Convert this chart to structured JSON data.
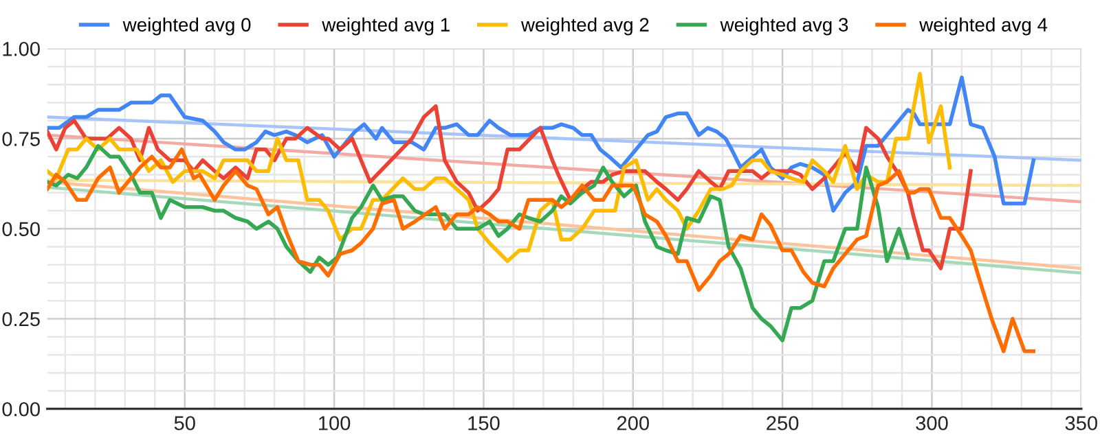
{
  "chart_data": {
    "type": "line",
    "legend": "top",
    "grid": true,
    "marker": "none",
    "line_style": "solid",
    "xlim": [
      4,
      350
    ],
    "xticks": [
      {
        "value": 10,
        "label": null
      },
      {
        "value": 20,
        "label": null
      },
      {
        "value": 30,
        "label": null
      },
      {
        "value": 40,
        "label": null
      },
      50,
      {
        "value": 60,
        "label": null
      },
      {
        "value": 70,
        "label": null
      },
      {
        "value": 80,
        "label": null
      },
      {
        "value": 90,
        "label": null
      },
      100,
      {
        "value": 110,
        "label": null
      },
      {
        "value": 120,
        "label": null
      },
      {
        "value": 130,
        "label": null
      },
      {
        "value": 140,
        "label": null
      },
      150,
      {
        "value": 160,
        "label": null
      },
      {
        "value": 170,
        "label": null
      },
      {
        "value": 180,
        "label": null
      },
      {
        "value": 190,
        "label": null
      },
      200,
      {
        "value": 210,
        "label": null
      },
      {
        "value": 220,
        "label": null
      },
      {
        "value": 230,
        "label": null
      },
      {
        "value": 240,
        "label": null
      },
      250,
      {
        "value": 260,
        "label": null
      },
      {
        "value": 270,
        "label": null
      },
      {
        "value": 280,
        "label": null
      },
      {
        "value": 290,
        "label": null
      },
      300,
      {
        "value": 310,
        "label": null
      },
      {
        "value": 320,
        "label": null
      },
      {
        "value": 330,
        "label": null
      },
      {
        "value": 340,
        "label": null
      },
      350
    ],
    "ylim": [
      0,
      1
    ],
    "yticks": [
      {
        "value": 0,
        "label": "0.00"
      },
      {
        "value": 0.05,
        "label": null
      },
      {
        "value": 0.1,
        "label": null
      },
      {
        "value": 0.15,
        "label": null
      },
      {
        "value": 0.2,
        "label": null
      },
      0.25,
      {
        "value": 0.3,
        "label": null
      },
      {
        "value": 0.35,
        "label": null
      },
      {
        "value": 0.4,
        "label": null
      },
      {
        "value": 0.45,
        "label": null
      },
      {
        "value": 0.5,
        "label": "0.50"
      },
      {
        "value": 0.55,
        "label": null
      },
      {
        "value": 0.6,
        "label": null
      },
      {
        "value": 0.65,
        "label": null
      },
      {
        "value": 0.7,
        "label": null
      },
      0.75,
      {
        "value": 0.8,
        "label": null
      },
      {
        "value": 0.85,
        "label": null
      },
      {
        "value": 0.9,
        "label": null
      },
      {
        "value": 0.95,
        "label": null
      },
      {
        "value": 1,
        "label": "1.00"
      }
    ],
    "series": [
      {
        "type": "line",
        "color": "#a6c4f9",
        "x": [
          4,
          350
        ],
        "values": [
          0.81,
          0.69
        ]
      },
      {
        "type": "line",
        "color": "#f3aaa3",
        "x": [
          4,
          350
        ],
        "values": [
          0.76,
          0.575
        ]
      },
      {
        "type": "line",
        "color": "#fbe29b",
        "x": [
          4,
          350
        ],
        "values": [
          0.635,
          0.62
        ]
      },
      {
        "type": "line",
        "color": "#ffc39c",
        "x": [
          4,
          350
        ],
        "values": [
          0.63,
          0.39
        ]
      },
      {
        "type": "line",
        "color": "#a6d9bb",
        "x": [
          4,
          350
        ],
        "values": [
          0.615,
          0.377
        ]
      },
      {
        "name": "weighted avg 0",
        "color": "#4285f4",
        "x": [
          4,
          8,
          13,
          17,
          21,
          28,
          32,
          39,
          42,
          45,
          50,
          56,
          60,
          63,
          67,
          70,
          74,
          77,
          80,
          84,
          87,
          91,
          96,
          100,
          103,
          107,
          110,
          114,
          116,
          120,
          126,
          130,
          134,
          137,
          141,
          145,
          148,
          152,
          155,
          159,
          162,
          165,
          169,
          173,
          176,
          180,
          183,
          186,
          189,
          192,
          196,
          201,
          205,
          208,
          211,
          215,
          218,
          222,
          225,
          228,
          231,
          233,
          236,
          243,
          246,
          250,
          253,
          256,
          260,
          264,
          267,
          271,
          275,
          278,
          282,
          285,
          289,
          292,
          294,
          296,
          300,
          306,
          310,
          313,
          317,
          321,
          324,
          331,
          334
        ],
        "values": [
          0.78,
          0.78,
          0.81,
          0.81,
          0.83,
          0.83,
          0.85,
          0.85,
          0.87,
          0.87,
          0.81,
          0.8,
          0.77,
          0.74,
          0.72,
          0.72,
          0.74,
          0.77,
          0.76,
          0.77,
          0.76,
          0.74,
          0.76,
          0.7,
          0.73,
          0.77,
          0.79,
          0.75,
          0.78,
          0.74,
          0.74,
          0.72,
          0.78,
          0.78,
          0.79,
          0.76,
          0.76,
          0.8,
          0.78,
          0.76,
          0.76,
          0.76,
          0.78,
          0.78,
          0.79,
          0.78,
          0.76,
          0.76,
          0.72,
          0.7,
          0.67,
          0.72,
          0.76,
          0.77,
          0.81,
          0.82,
          0.82,
          0.76,
          0.78,
          0.77,
          0.75,
          0.72,
          0.67,
          0.72,
          0.67,
          0.64,
          0.67,
          0.68,
          0.67,
          0.65,
          0.55,
          0.6,
          0.63,
          0.73,
          0.73,
          0.76,
          0.8,
          0.83,
          0.82,
          0.79,
          0.79,
          0.79,
          0.92,
          0.79,
          0.78,
          0.7,
          0.57,
          0.57,
          0.69
        ]
      },
      {
        "name": "weighted avg 1",
        "color": "#ea4335",
        "x": [
          4,
          7,
          10,
          13,
          17,
          24,
          28,
          32,
          35,
          38,
          41,
          45,
          50,
          53,
          56,
          60,
          63,
          67,
          71,
          74,
          77,
          80,
          84,
          87,
          91,
          96,
          98,
          102,
          106,
          109,
          112,
          126,
          130,
          134,
          137,
          141,
          145,
          148,
          152,
          155,
          158,
          162,
          169,
          173,
          175,
          179,
          183,
          186,
          190,
          193,
          197,
          201,
          204,
          208,
          211,
          215,
          218,
          222,
          226,
          229,
          232,
          236,
          240,
          243,
          246,
          253,
          256,
          260,
          264,
          268,
          271,
          275,
          278,
          282,
          285,
          289,
          292,
          294,
          297,
          299,
          303,
          306,
          310,
          313
        ],
        "values": [
          0.77,
          0.72,
          0.78,
          0.8,
          0.75,
          0.75,
          0.78,
          0.75,
          0.69,
          0.78,
          0.72,
          0.69,
          0.69,
          0.66,
          0.69,
          0.66,
          0.64,
          0.67,
          0.64,
          0.72,
          0.72,
          0.69,
          0.75,
          0.75,
          0.78,
          0.75,
          0.75,
          0.72,
          0.75,
          0.69,
          0.63,
          0.75,
          0.81,
          0.84,
          0.69,
          0.63,
          0.6,
          0.55,
          0.58,
          0.61,
          0.72,
          0.72,
          0.78,
          0.69,
          0.65,
          0.58,
          0.61,
          0.63,
          0.63,
          0.65,
          0.66,
          0.66,
          0.66,
          0.63,
          0.61,
          0.58,
          0.61,
          0.66,
          0.63,
          0.61,
          0.66,
          0.66,
          0.66,
          0.64,
          0.66,
          0.66,
          0.65,
          0.61,
          0.64,
          0.68,
          0.71,
          0.66,
          0.78,
          0.75,
          0.7,
          0.65,
          0.6,
          0.53,
          0.44,
          0.44,
          0.39,
          0.5,
          0.5,
          0.66
        ]
      },
      {
        "name": "weighted avg 2",
        "color": "#fbbc04",
        "x": [
          4,
          7,
          11,
          14,
          17,
          21,
          25,
          28,
          34,
          38,
          42,
          46,
          50,
          53,
          56,
          60,
          63,
          67,
          71,
          74,
          78,
          81,
          84,
          88,
          91,
          95,
          98,
          102,
          106,
          109,
          113,
          116,
          123,
          127,
          130,
          134,
          137,
          141,
          145,
          148,
          152,
          158,
          162,
          165,
          169,
          173,
          176,
          179,
          183,
          187,
          191,
          194,
          197,
          201,
          205,
          208,
          211,
          215,
          218,
          222,
          226,
          230,
          233,
          236,
          240,
          243,
          246,
          250,
          253,
          257,
          260,
          264,
          267,
          271,
          275,
          278,
          282,
          285,
          288,
          292,
          296,
          299,
          303,
          306
        ],
        "values": [
          0.66,
          0.64,
          0.72,
          0.72,
          0.75,
          0.72,
          0.75,
          0.72,
          0.72,
          0.66,
          0.69,
          0.63,
          0.66,
          0.66,
          0.66,
          0.64,
          0.69,
          0.69,
          0.69,
          0.66,
          0.66,
          0.75,
          0.69,
          0.69,
          0.58,
          0.58,
          0.55,
          0.47,
          0.5,
          0.5,
          0.58,
          0.58,
          0.64,
          0.61,
          0.61,
          0.64,
          0.64,
          0.61,
          0.58,
          0.5,
          0.46,
          0.41,
          0.44,
          0.44,
          0.55,
          0.58,
          0.47,
          0.47,
          0.5,
          0.55,
          0.55,
          0.55,
          0.67,
          0.69,
          0.58,
          0.61,
          0.58,
          0.55,
          0.5,
          0.55,
          0.61,
          0.61,
          0.62,
          0.66,
          0.69,
          0.69,
          0.66,
          0.65,
          0.64,
          0.63,
          0.69,
          0.66,
          0.63,
          0.73,
          0.61,
          0.65,
          0.63,
          0.63,
          0.75,
          0.75,
          0.93,
          0.74,
          0.84,
          0.67
        ]
      },
      {
        "name": "weighted avg 3",
        "color": "#34a853",
        "x": [
          4,
          7,
          11,
          14,
          17,
          21,
          25,
          28,
          32,
          35,
          39,
          42,
          45,
          50,
          53,
          56,
          60,
          63,
          67,
          71,
          74,
          78,
          81,
          84,
          88,
          92,
          95,
          98,
          101,
          106,
          109,
          113,
          116,
          120,
          123,
          127,
          130,
          134,
          137,
          141,
          145,
          148,
          152,
          155,
          158,
          162,
          165,
          169,
          173,
          176,
          179,
          183,
          187,
          190,
          193,
          197,
          201,
          204,
          208,
          211,
          215,
          218,
          222,
          226,
          229,
          232,
          236,
          240,
          243,
          246,
          250,
          253,
          256,
          260,
          264,
          267,
          271,
          275,
          278,
          282,
          285,
          289,
          292
        ],
        "values": [
          0.63,
          0.62,
          0.65,
          0.64,
          0.67,
          0.73,
          0.7,
          0.7,
          0.65,
          0.6,
          0.6,
          0.53,
          0.58,
          0.56,
          0.56,
          0.56,
          0.55,
          0.55,
          0.53,
          0.52,
          0.5,
          0.52,
          0.5,
          0.45,
          0.41,
          0.38,
          0.42,
          0.4,
          0.42,
          0.53,
          0.56,
          0.62,
          0.58,
          0.59,
          0.59,
          0.55,
          0.54,
          0.54,
          0.54,
          0.5,
          0.5,
          0.5,
          0.52,
          0.48,
          0.5,
          0.54,
          0.53,
          0.52,
          0.55,
          0.59,
          0.57,
          0.6,
          0.62,
          0.67,
          0.63,
          0.59,
          0.62,
          0.52,
          0.45,
          0.44,
          0.43,
          0.53,
          0.52,
          0.59,
          0.58,
          0.45,
          0.39,
          0.28,
          0.25,
          0.23,
          0.19,
          0.28,
          0.28,
          0.3,
          0.41,
          0.41,
          0.5,
          0.5,
          0.67,
          0.56,
          0.41,
          0.5,
          0.42
        ]
      },
      {
        "name": "weighted avg 4",
        "color": "#ff6d01",
        "x": [
          4,
          7,
          10,
          14,
          17,
          21,
          25,
          28,
          32,
          35,
          39,
          42,
          45,
          49,
          53,
          55,
          60,
          63,
          67,
          71,
          74,
          78,
          81,
          84,
          88,
          92,
          95,
          98,
          102,
          106,
          109,
          113,
          116,
          120,
          123,
          127,
          134,
          137,
          141,
          145,
          148,
          152,
          155,
          158,
          162,
          165,
          169,
          173,
          176,
          179,
          183,
          187,
          190,
          193,
          197,
          200,
          204,
          208,
          211,
          215,
          218,
          222,
          226,
          229,
          232,
          236,
          240,
          243,
          246,
          250,
          253,
          257,
          260,
          264,
          267,
          271,
          275,
          278,
          282,
          285,
          289,
          292,
          294,
          296,
          299,
          303,
          306,
          310,
          313,
          317,
          320,
          324,
          327,
          331,
          334
        ],
        "values": [
          0.61,
          0.65,
          0.63,
          0.58,
          0.58,
          0.64,
          0.67,
          0.6,
          0.64,
          0.67,
          0.7,
          0.67,
          0.67,
          0.72,
          0.64,
          0.65,
          0.58,
          0.62,
          0.66,
          0.62,
          0.61,
          0.54,
          0.56,
          0.49,
          0.41,
          0.4,
          0.4,
          0.37,
          0.43,
          0.44,
          0.46,
          0.5,
          0.57,
          0.58,
          0.5,
          0.52,
          0.56,
          0.5,
          0.54,
          0.54,
          0.56,
          0.54,
          0.52,
          0.52,
          0.5,
          0.58,
          0.58,
          0.58,
          0.56,
          0.58,
          0.62,
          0.58,
          0.58,
          0.62,
          0.62,
          0.62,
          0.54,
          0.52,
          0.48,
          0.41,
          0.41,
          0.33,
          0.37,
          0.41,
          0.43,
          0.48,
          0.47,
          0.54,
          0.51,
          0.44,
          0.44,
          0.38,
          0.35,
          0.34,
          0.39,
          0.43,
          0.47,
          0.48,
          0.62,
          0.63,
          0.66,
          0.6,
          0.6,
          0.61,
          0.61,
          0.53,
          0.53,
          0.48,
          0.44,
          0.33,
          0.25,
          0.16,
          0.25,
          0.16,
          0.16
        ]
      }
    ]
  }
}
